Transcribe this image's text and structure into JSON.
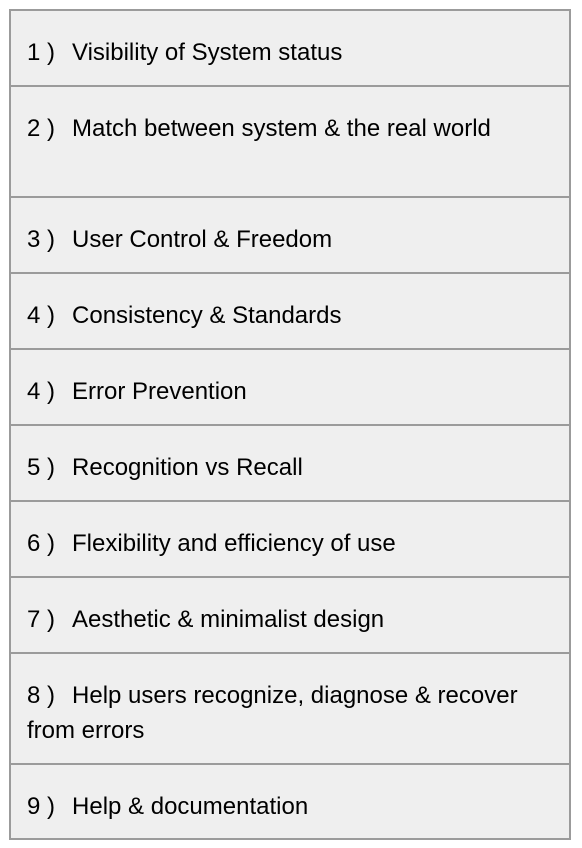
{
  "items": [
    {
      "number": "1 )",
      "text": "Visibility of System status"
    },
    {
      "number": "2 )",
      "text": "Match between system & the real world"
    },
    {
      "number": "3 )",
      "text": "User Control & Freedom"
    },
    {
      "number": "4 )",
      "text": "Consistency & Standards"
    },
    {
      "number": "4 )",
      "text": "Error Prevention"
    },
    {
      "number": "5 )",
      "text": "Recognition vs Recall"
    },
    {
      "number": "6 )",
      "text": "Flexibility and efficiency of use"
    },
    {
      "number": "7 )",
      "text": "Aesthetic & minimalist design"
    },
    {
      "number": "8 )",
      "text": "Help users recognize, diagnose & recover from errors"
    },
    {
      "number": "9 )",
      "text": "Help & documentation"
    }
  ]
}
